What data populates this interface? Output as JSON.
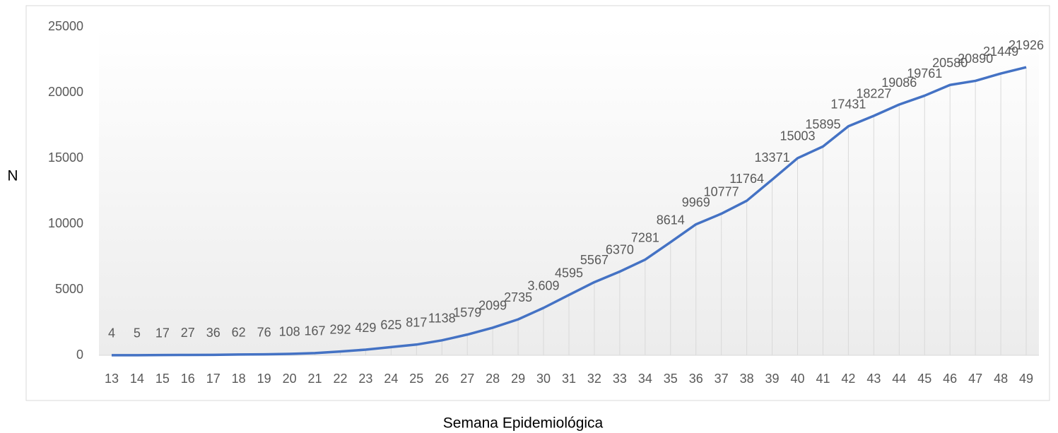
{
  "chart_data": {
    "type": "line",
    "x_label": "Semana Epidemiológica",
    "y_label": "N",
    "categories": [
      "13",
      "14",
      "15",
      "16",
      "17",
      "18",
      "19",
      "20",
      "21",
      "22",
      "23",
      "24",
      "25",
      "26",
      "27",
      "28",
      "29",
      "30",
      "31",
      "32",
      "33",
      "34",
      "35",
      "36",
      "37",
      "38",
      "39",
      "40",
      "41",
      "42",
      "43",
      "44",
      "45",
      "46",
      "47",
      "48",
      "49"
    ],
    "values": [
      4,
      5,
      17,
      27,
      36,
      62,
      76,
      108,
      167,
      292,
      429,
      625,
      817,
      1138,
      1579,
      2099,
      2735,
      3609,
      4595,
      5567,
      6370,
      7281,
      8614,
      9969,
      10777,
      11764,
      13371,
      15003,
      15895,
      17431,
      18227,
      19086,
      19761,
      20580,
      20890,
      21449,
      21926
    ],
    "value_labels": [
      "4",
      "5",
      "17",
      "27",
      "36",
      "62",
      "76",
      "108",
      "167",
      "292",
      "429",
      "625",
      "817",
      "1138",
      "1579",
      "2099",
      "2735",
      "3.609",
      "4595",
      "5567",
      "6370",
      "7281",
      "8614",
      "9969",
      "10777",
      "11764",
      "13371",
      "15003",
      "15895",
      "17431",
      "18227",
      "19086",
      "19761",
      "20580",
      "20890",
      "21449",
      "21926"
    ],
    "color": "#4472c4",
    "ylim": [
      0,
      25000
    ],
    "yticks": [
      0,
      5000,
      10000,
      15000,
      20000,
      25000
    ],
    "drop_lines": true
  }
}
